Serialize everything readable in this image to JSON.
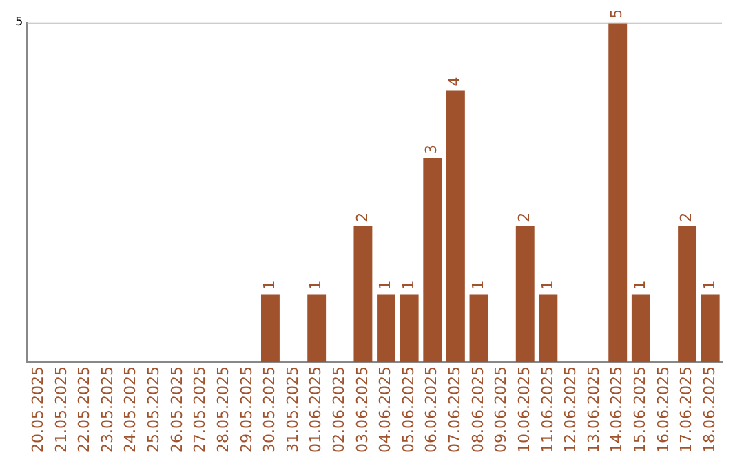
{
  "chart_data": {
    "type": "bar",
    "categories": [
      "20.05.2025",
      "21.05.2025",
      "22.05.2025",
      "23.05.2025",
      "24.05.2025",
      "25.05.2025",
      "26.05.2025",
      "27.05.2025",
      "28.05.2025",
      "29.05.2025",
      "30.05.2025",
      "31.05.2025",
      "01.06.2025",
      "02.06.2025",
      "03.06.2025",
      "04.06.2025",
      "05.06.2025",
      "06.06.2025",
      "07.06.2025",
      "08.06.2025",
      "09.06.2025",
      "10.06.2025",
      "11.06.2025",
      "12.06.2025",
      "13.06.2025",
      "14.06.2025",
      "15.06.2025",
      "16.06.2025",
      "17.06.2025",
      "18.06.2025"
    ],
    "values": [
      null,
      null,
      null,
      null,
      null,
      null,
      null,
      null,
      null,
      null,
      1,
      null,
      1,
      null,
      2,
      1,
      1,
      3,
      4,
      1,
      null,
      2,
      1,
      null,
      null,
      5,
      1,
      null,
      2,
      1
    ],
    "color": "#a0522d",
    "ylim": [
      0,
      5
    ],
    "yticks": [
      5
    ],
    "data_labels": true
  }
}
